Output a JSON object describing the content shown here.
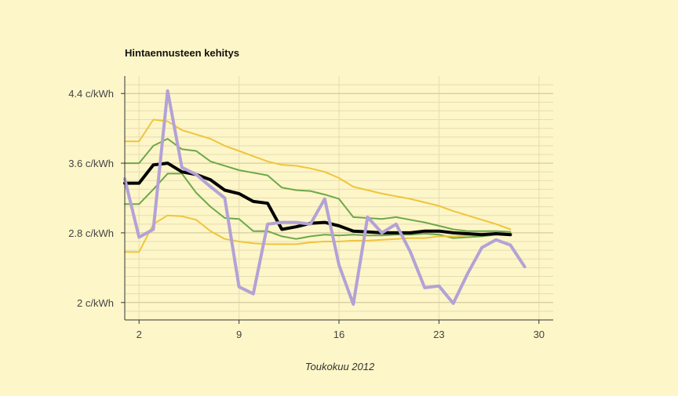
{
  "chart_data": {
    "type": "line",
    "title": "Hintaennusteen kehitys",
    "xlabel": "Toukokuu 2012",
    "ylabel": "",
    "x_ticks": [
      2,
      9,
      16,
      23,
      30
    ],
    "y_ticks": [
      {
        "value": 2.0,
        "label": "2 c/kWh"
      },
      {
        "value": 2.8,
        "label": "2.8 c/kWh"
      },
      {
        "value": 3.6,
        "label": "3.6 c/kWh"
      },
      {
        "value": 4.4,
        "label": "4.4 c/kWh"
      }
    ],
    "xlim": [
      1,
      31
    ],
    "ylim": [
      1.8,
      4.6
    ],
    "grid": true,
    "colors": {
      "background": "#fdf6c8",
      "grid": "#e6dcb4",
      "outer_band": "#f0c43c",
      "inner_band": "#6da84a",
      "forecast": "#000000",
      "actual": "#b3a2d6"
    },
    "series": [
      {
        "role": "outer-upper",
        "color": "#f0c43c",
        "width": 2,
        "x": [
          1,
          2,
          3,
          4,
          5,
          6,
          7,
          8,
          9,
          10,
          11,
          12,
          13,
          14,
          15,
          16,
          17,
          18,
          19,
          20,
          21,
          22,
          23,
          24,
          25,
          26,
          27,
          28
        ],
        "values": [
          3.85,
          3.85,
          4.1,
          4.08,
          3.98,
          3.93,
          3.88,
          3.8,
          3.74,
          3.68,
          3.62,
          3.58,
          3.57,
          3.54,
          3.5,
          3.43,
          3.33,
          3.29,
          3.25,
          3.22,
          3.19,
          3.15,
          3.11,
          3.05,
          3.0,
          2.95,
          2.9,
          2.84
        ]
      },
      {
        "role": "inner-upper",
        "color": "#6da84a",
        "width": 2,
        "x": [
          1,
          2,
          3,
          4,
          5,
          6,
          7,
          8,
          9,
          10,
          11,
          12,
          13,
          14,
          15,
          16,
          17,
          18,
          19,
          20,
          21,
          22,
          23,
          24,
          25,
          26,
          27,
          28
        ],
        "values": [
          3.6,
          3.6,
          3.8,
          3.88,
          3.76,
          3.74,
          3.62,
          3.57,
          3.52,
          3.49,
          3.46,
          3.32,
          3.29,
          3.28,
          3.24,
          3.19,
          2.98,
          2.97,
          2.96,
          2.98,
          2.95,
          2.92,
          2.88,
          2.84,
          2.82,
          2.82,
          2.82,
          2.81
        ]
      },
      {
        "role": "inner-lower",
        "color": "#6da84a",
        "width": 2,
        "x": [
          1,
          2,
          3,
          4,
          5,
          6,
          7,
          8,
          9,
          10,
          11,
          12,
          13,
          14,
          15,
          16,
          17,
          18,
          19,
          20,
          21,
          22,
          23,
          24,
          25,
          26,
          27,
          28
        ],
        "values": [
          3.13,
          3.13,
          3.3,
          3.48,
          3.48,
          3.26,
          3.1,
          2.97,
          2.96,
          2.82,
          2.82,
          2.76,
          2.73,
          2.76,
          2.78,
          2.77,
          2.78,
          2.77,
          2.77,
          2.78,
          2.78,
          2.79,
          2.78,
          2.74,
          2.75,
          2.76,
          2.78,
          2.79
        ]
      },
      {
        "role": "outer-lower",
        "color": "#f0c43c",
        "width": 2,
        "x": [
          1,
          2,
          3,
          4,
          5,
          6,
          7,
          8,
          9,
          10,
          11,
          12,
          13,
          14,
          15,
          16,
          17,
          18,
          19,
          20,
          21,
          22,
          23,
          24,
          25,
          26,
          27,
          28
        ],
        "values": [
          2.58,
          2.58,
          2.9,
          3.0,
          2.99,
          2.95,
          2.82,
          2.73,
          2.7,
          2.68,
          2.67,
          2.67,
          2.67,
          2.69,
          2.7,
          2.7,
          2.71,
          2.71,
          2.72,
          2.73,
          2.74,
          2.74,
          2.76,
          2.76,
          2.77,
          2.78,
          2.78,
          2.78
        ]
      },
      {
        "role": "forecast",
        "color": "#000000",
        "width": 4,
        "x": [
          1,
          2,
          3,
          4,
          5,
          6,
          7,
          8,
          9,
          10,
          11,
          12,
          13,
          14,
          15,
          16,
          17,
          18,
          19,
          20,
          21,
          22,
          23,
          24,
          25,
          26,
          27,
          28
        ],
        "values": [
          3.37,
          3.37,
          3.58,
          3.6,
          3.5,
          3.47,
          3.41,
          3.29,
          3.25,
          3.16,
          3.14,
          2.84,
          2.87,
          2.91,
          2.92,
          2.88,
          2.82,
          2.81,
          2.8,
          2.8,
          2.8,
          2.82,
          2.82,
          2.8,
          2.79,
          2.78,
          2.79,
          2.78
        ]
      },
      {
        "role": "actual",
        "color": "#b3a2d6",
        "width": 4,
        "x": [
          1,
          2,
          3,
          4,
          5,
          6,
          7,
          8,
          9,
          10,
          11,
          12,
          13,
          14,
          15,
          16,
          17,
          18,
          19,
          20,
          21,
          22,
          23,
          24,
          25,
          26,
          27,
          28,
          29
        ],
        "values": [
          3.42,
          2.75,
          2.84,
          4.43,
          3.55,
          3.47,
          3.33,
          3.2,
          2.18,
          2.1,
          2.9,
          2.92,
          2.92,
          2.9,
          3.19,
          2.43,
          1.98,
          2.98,
          2.8,
          2.9,
          2.58,
          2.17,
          2.19,
          1.99,
          2.33,
          2.63,
          2.72,
          2.66,
          2.41
        ]
      }
    ]
  }
}
